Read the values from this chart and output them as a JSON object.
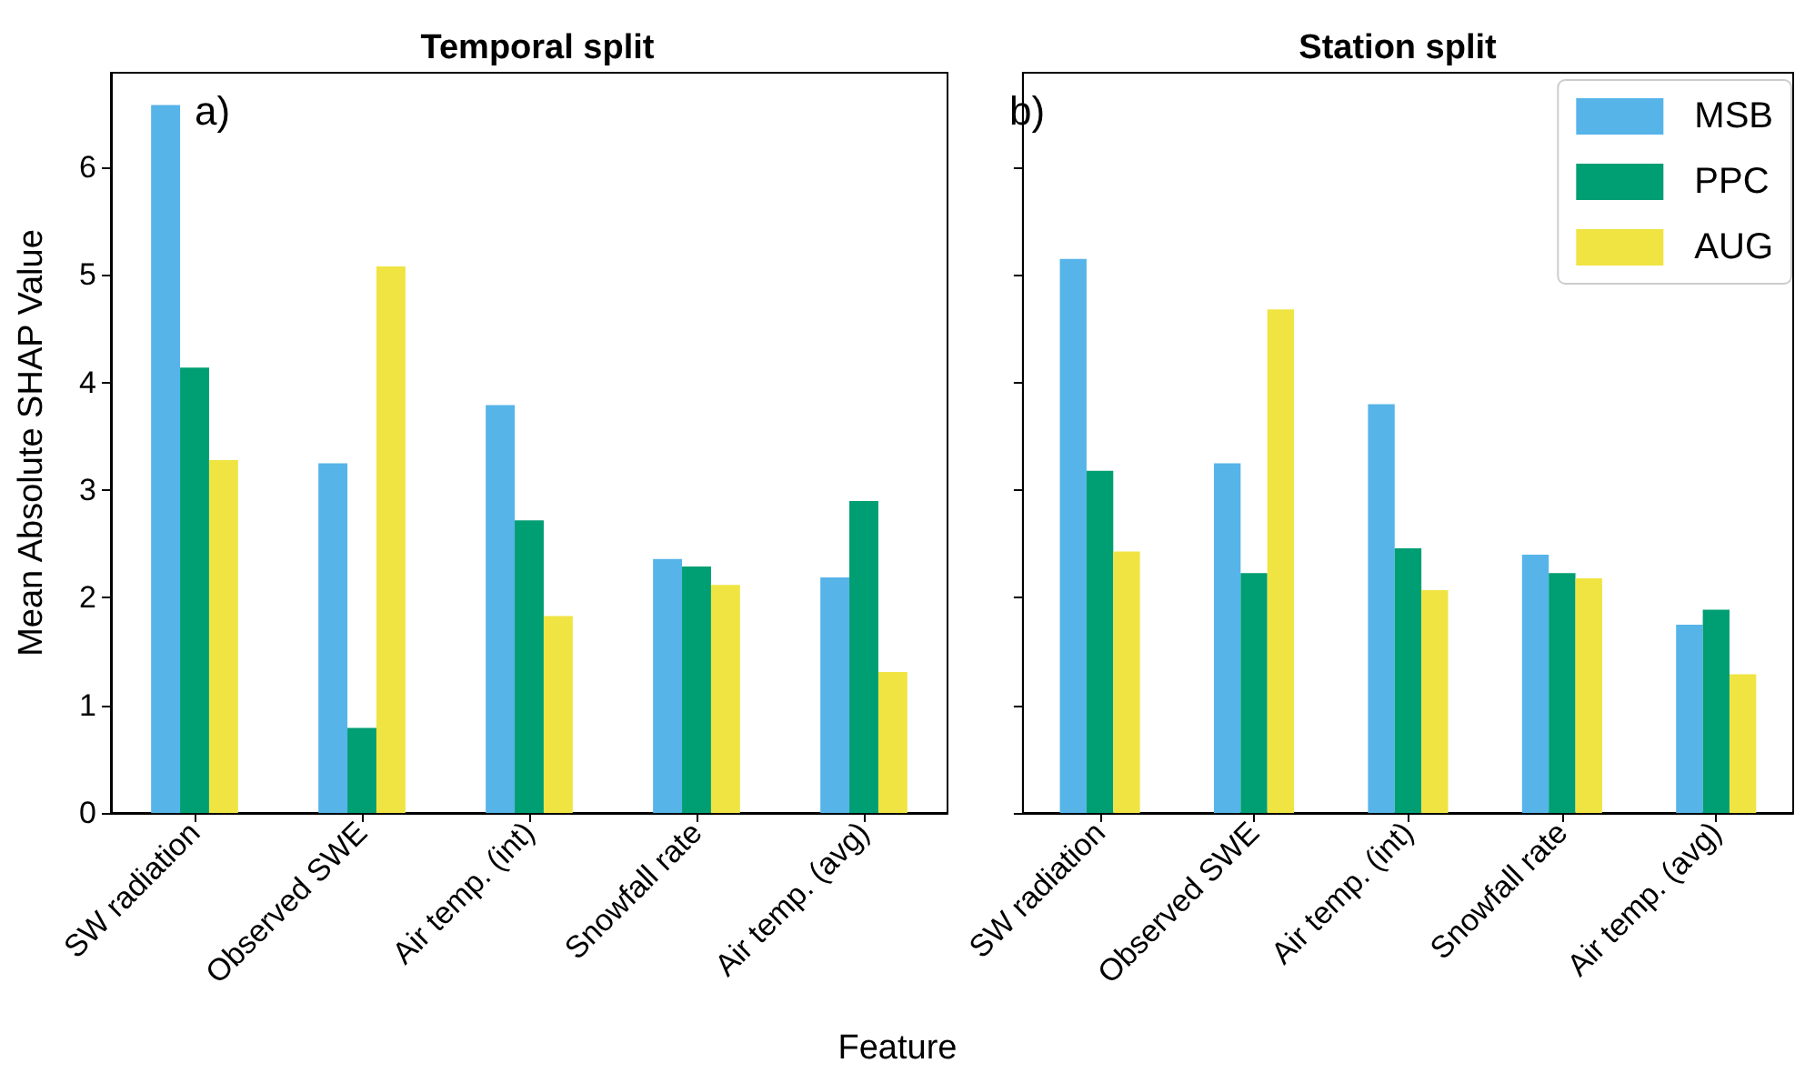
{
  "chart_data": [
    {
      "type": "bar",
      "title": "Temporal split",
      "xlabel": "Feature",
      "ylabel": "Mean Absolute SHAP Value",
      "annotations": [
        "a)"
      ],
      "categories": [
        "SW radiation",
        "Observed SWE",
        "Air temp. (int)",
        "Snowfall rate",
        "Air temp. (avg)"
      ],
      "series": [
        {
          "color": "#56b4e9",
          "values": [
            6.58,
            3.25,
            3.79,
            2.36,
            2.19
          ]
        },
        {
          "color": "#009e73",
          "values": [
            4.14,
            0.79,
            2.72,
            2.29,
            2.9
          ]
        },
        {
          "color": "#f0e442",
          "values": [
            3.28,
            5.08,
            1.83,
            2.12,
            1.31
          ]
        }
      ],
      "ylim": [
        0,
        6.88
      ],
      "yticks": [
        0,
        1,
        2,
        3,
        4,
        5,
        6
      ],
      "grid": false,
      "legend": false
    },
    {
      "type": "bar",
      "title": "Station split",
      "annotations": [
        "b)"
      ],
      "categories": [
        "SW radiation",
        "Observed SWE",
        "Air temp. (int)",
        "Snowfall rate",
        "Air temp. (avg)"
      ],
      "series": [
        {
          "name": "MSB",
          "color": "#56b4e9",
          "values": [
            5.15,
            3.25,
            3.8,
            2.4,
            1.75
          ]
        },
        {
          "name": "PPC",
          "color": "#009e73",
          "values": [
            3.18,
            2.23,
            2.46,
            2.23,
            1.89
          ]
        },
        {
          "name": "AUG",
          "color": "#f0e442",
          "values": [
            2.43,
            4.68,
            2.07,
            2.18,
            1.29
          ]
        }
      ],
      "ylim": [
        0,
        6.88
      ],
      "yticks": [
        0,
        1,
        2,
        3,
        4,
        5,
        6
      ],
      "tick_labels": "x",
      "grid": false,
      "legend": "top right"
    }
  ]
}
